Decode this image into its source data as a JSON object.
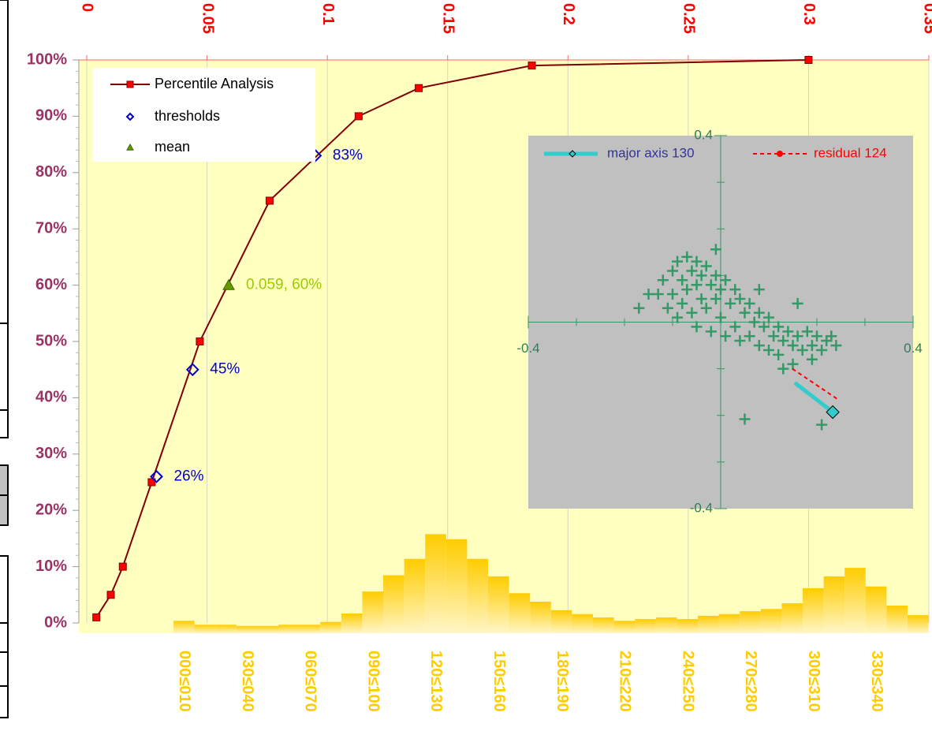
{
  "chart_data": [
    {
      "type": "line",
      "xlim": [
        0,
        0.35
      ],
      "xticks": [
        0,
        0.05,
        0.1,
        0.15,
        0.2,
        0.25,
        0.3,
        0.35
      ],
      "ylim": [
        0,
        100
      ],
      "yticks": [
        {
          "value": 0,
          "label": "0%"
        },
        {
          "value": 10,
          "label": "10%"
        },
        {
          "value": 20,
          "label": "20%"
        },
        {
          "value": 30,
          "label": "30%"
        },
        {
          "value": 40,
          "label": "40%"
        },
        {
          "value": 50,
          "label": "50%"
        },
        {
          "value": 60,
          "label": "60%"
        },
        {
          "value": 70,
          "label": "70%"
        },
        {
          "value": 80,
          "label": "80%"
        },
        {
          "value": 90,
          "label": "90%"
        },
        {
          "value": 100,
          "label": "100%"
        }
      ],
      "grid": true,
      "series": [
        {
          "name": "Percentile Analysis",
          "color": "#800000",
          "marker_color": "#ff0000",
          "marker": "square",
          "x": [
            0.004,
            0.01,
            0.015,
            0.027,
            0.047,
            0.076,
            0.113,
            0.138,
            0.185,
            0.3
          ],
          "values": [
            1,
            5,
            10,
            25,
            50,
            75,
            90,
            95,
            99,
            100
          ]
        },
        {
          "name": "thresholds",
          "color": "#0000cc",
          "marker": "diamond",
          "x": [
            0.029,
            0.044,
            0.095
          ],
          "values": [
            26,
            45,
            83
          ],
          "value_labels": [
            "26%",
            "45%",
            "83%"
          ]
        },
        {
          "name": "mean",
          "color": "#669900",
          "marker": "triangle",
          "x": [
            0.059
          ],
          "values": [
            60
          ],
          "value_labels": [
            "0.059, 60%"
          ]
        }
      ]
    },
    {
      "type": "bar",
      "color": "#ffcc00",
      "label_color": "#ffcc00",
      "ylim": [
        0,
        100
      ],
      "categories": [
        "000≤010",
        null,
        null,
        "030≤040",
        null,
        null,
        "060≤070",
        null,
        null,
        "090≤100",
        null,
        null,
        "120≤130",
        null,
        null,
        "150≤160",
        null,
        null,
        "180≤190",
        null,
        null,
        "210≤220",
        null,
        null,
        "240≤250",
        null,
        null,
        "270≤280",
        null,
        null,
        "300≤310",
        null,
        null,
        "330≤340",
        null,
        null
      ],
      "values": [
        2.2,
        1.5,
        1.5,
        1.3,
        1.3,
        1.5,
        1.5,
        2.0,
        3.5,
        7.4,
        10.3,
        13.2,
        17.6,
        16.7,
        13.2,
        10.1,
        7.1,
        5.6,
        4.1,
        3.4,
        2.8,
        2.2,
        2.5,
        2.8,
        2.5,
        3.1,
        3.4,
        3.9,
        4.3,
        5.3,
        8.0,
        10.1,
        11.6,
        8.3,
        4.9,
        3.2
      ]
    },
    {
      "type": "scatter",
      "background": "#c0c0c0",
      "xlim": [
        -0.4,
        0.4
      ],
      "xticks": [
        -0.4,
        0.4
      ],
      "ylim": [
        -0.4,
        0.4
      ],
      "yticks": [
        -0.4,
        0.4
      ],
      "series": [
        {
          "color": "#339966",
          "x": [
            -0.13,
            -0.12,
            -0.11,
            -0.1,
            -0.1,
            -0.09,
            -0.09,
            -0.08,
            -0.08,
            -0.07,
            -0.07,
            -0.06,
            -0.06,
            -0.05,
            -0.05,
            -0.05,
            -0.04,
            -0.04,
            -0.03,
            -0.03,
            -0.02,
            -0.02,
            -0.01,
            -0.01,
            0.0,
            0.0,
            0.01,
            0.01,
            0.02,
            0.03,
            0.03,
            0.04,
            0.04,
            0.05,
            0.06,
            0.06,
            0.07,
            0.08,
            0.08,
            0.09,
            0.1,
            0.1,
            0.11,
            0.12,
            0.12,
            0.13,
            0.14,
            0.15,
            0.15,
            0.16,
            0.17,
            0.18,
            0.19,
            0.2,
            0.21,
            0.22,
            0.23,
            0.24,
            0.19,
            0.13,
            -0.01,
            -0.17,
            0.08,
            0.16,
            0.05,
            0.21,
            -0.15
          ],
          "values": [
            0.06,
            0.09,
            0.03,
            0.11,
            0.06,
            0.13,
            0.01,
            0.09,
            0.04,
            0.14,
            0.07,
            0.11,
            0.02,
            0.13,
            0.08,
            -0.01,
            0.05,
            0.1,
            0.12,
            0.03,
            0.08,
            -0.02,
            0.1,
            0.05,
            0.07,
            0.01,
            0.09,
            -0.03,
            0.04,
            0.07,
            -0.01,
            0.05,
            -0.04,
            0.02,
            0.04,
            -0.03,
            0.0,
            0.02,
            -0.05,
            -0.01,
            0.01,
            -0.06,
            -0.03,
            -0.01,
            -0.07,
            -0.04,
            -0.02,
            -0.05,
            -0.09,
            -0.03,
            -0.06,
            -0.02,
            -0.05,
            -0.03,
            -0.06,
            -0.04,
            -0.03,
            -0.05,
            -0.08,
            -0.1,
            0.156,
            0.03,
            0.07,
            0.04,
            -0.208,
            -0.22,
            0.06
          ]
        },
        {
          "name": "major axis 130",
          "color": "#33cccc",
          "label_color": "#333399",
          "x": [
            0.154,
            0.233
          ],
          "values": [
            -0.13,
            -0.193
          ]
        },
        {
          "name": "residual 124",
          "color": "#ff0000",
          "label_color": "#ff0000",
          "dash": true,
          "x": [
            0.149,
            0.244
          ],
          "values": [
            -0.1,
            -0.166
          ]
        }
      ]
    }
  ]
}
